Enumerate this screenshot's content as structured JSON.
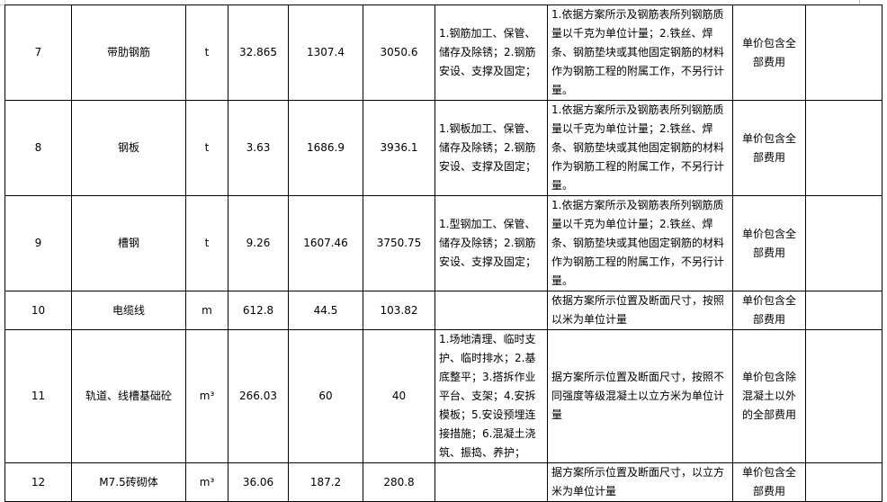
{
  "rows": [
    {
      "no": "7",
      "name": "带肋钢筋",
      "unit": "t",
      "qty": "32.865",
      "price1": "1307.4",
      "price2": "3050.6",
      "work": "1.钢筋加工、保管、储存及除锈；2.钢筋安设、支撑及固定；",
      "rule": "1.依据方案所示及钢筋表所列钢筋质量以千克为单位计量；2.铁丝、焊条、钢筋垫块或其他固定钢筋的材料作为钢筋工程的附属工作，不另行计量。",
      "note": "单价包含全部费用",
      "extra": ""
    },
    {
      "no": "8",
      "name": "钢板",
      "unit": "t",
      "qty": "3.63",
      "price1": "1686.9",
      "price2": "3936.1",
      "work": "1.钢板加工、保管、储存及除锈；2.钢筋安设、支撑及固定；",
      "rule": "1.依据方案所示及钢筋表所列钢筋质量以千克为单位计量；2.铁丝、焊条、钢筋垫块或其他固定钢筋的材料作为钢筋工程的附属工作，不另行计量。",
      "note": "单价包含全部费用",
      "extra": ""
    },
    {
      "no": "9",
      "name": "槽钢",
      "unit": "t",
      "qty": "9.26",
      "price1": "1607.46",
      "price2": "3750.75",
      "work": "1.型钢加工、保管、储存及除锈；2.钢筋安设、支撑及固定；",
      "rule": "1.依据方案所示及钢筋表所列钢筋质量以千克为单位计量；2.铁丝、焊条、钢筋垫块或其他固定钢筋的材料作为钢筋工程的附属工作，不另行计量。",
      "note": "单价包含全部费用",
      "extra": ""
    },
    {
      "no": "10",
      "name": "电缆线",
      "unit": "m",
      "qty": "612.8",
      "price1": "44.5",
      "price2": "103.82",
      "work": "",
      "rule": "依据方案所示位置及断面尺寸，按照以米为单位计量",
      "note": "单价包含全部费用",
      "extra": ""
    },
    {
      "no": "11",
      "name": "轨道、线槽基础砼",
      "unit": "m³",
      "qty": "266.03",
      "price1": "60",
      "price2": "40",
      "work": "1.场地清理、临时支护、临时排水；2.基底整平；3.搭拆作业平台、支架；4.安拆模板；5.安设预埋连接措施；6.混凝土浇筑、振捣、养护；",
      "rule": "据方案所示位置及断面尺寸，按照不同强度等级混凝土以立方米为单位计量",
      "note": "单价包含除混凝土以外的全部费用",
      "extra": ""
    },
    {
      "no": "12",
      "name": "M7.5砖砌体",
      "unit": "m³",
      "qty": "36.06",
      "price1": "187.2",
      "price2": "280.8",
      "work": "",
      "rule": "据方案所示位置及断面尺寸，以立方米为单位计量",
      "note": "单价包含全部费用",
      "extra": ""
    }
  ]
}
